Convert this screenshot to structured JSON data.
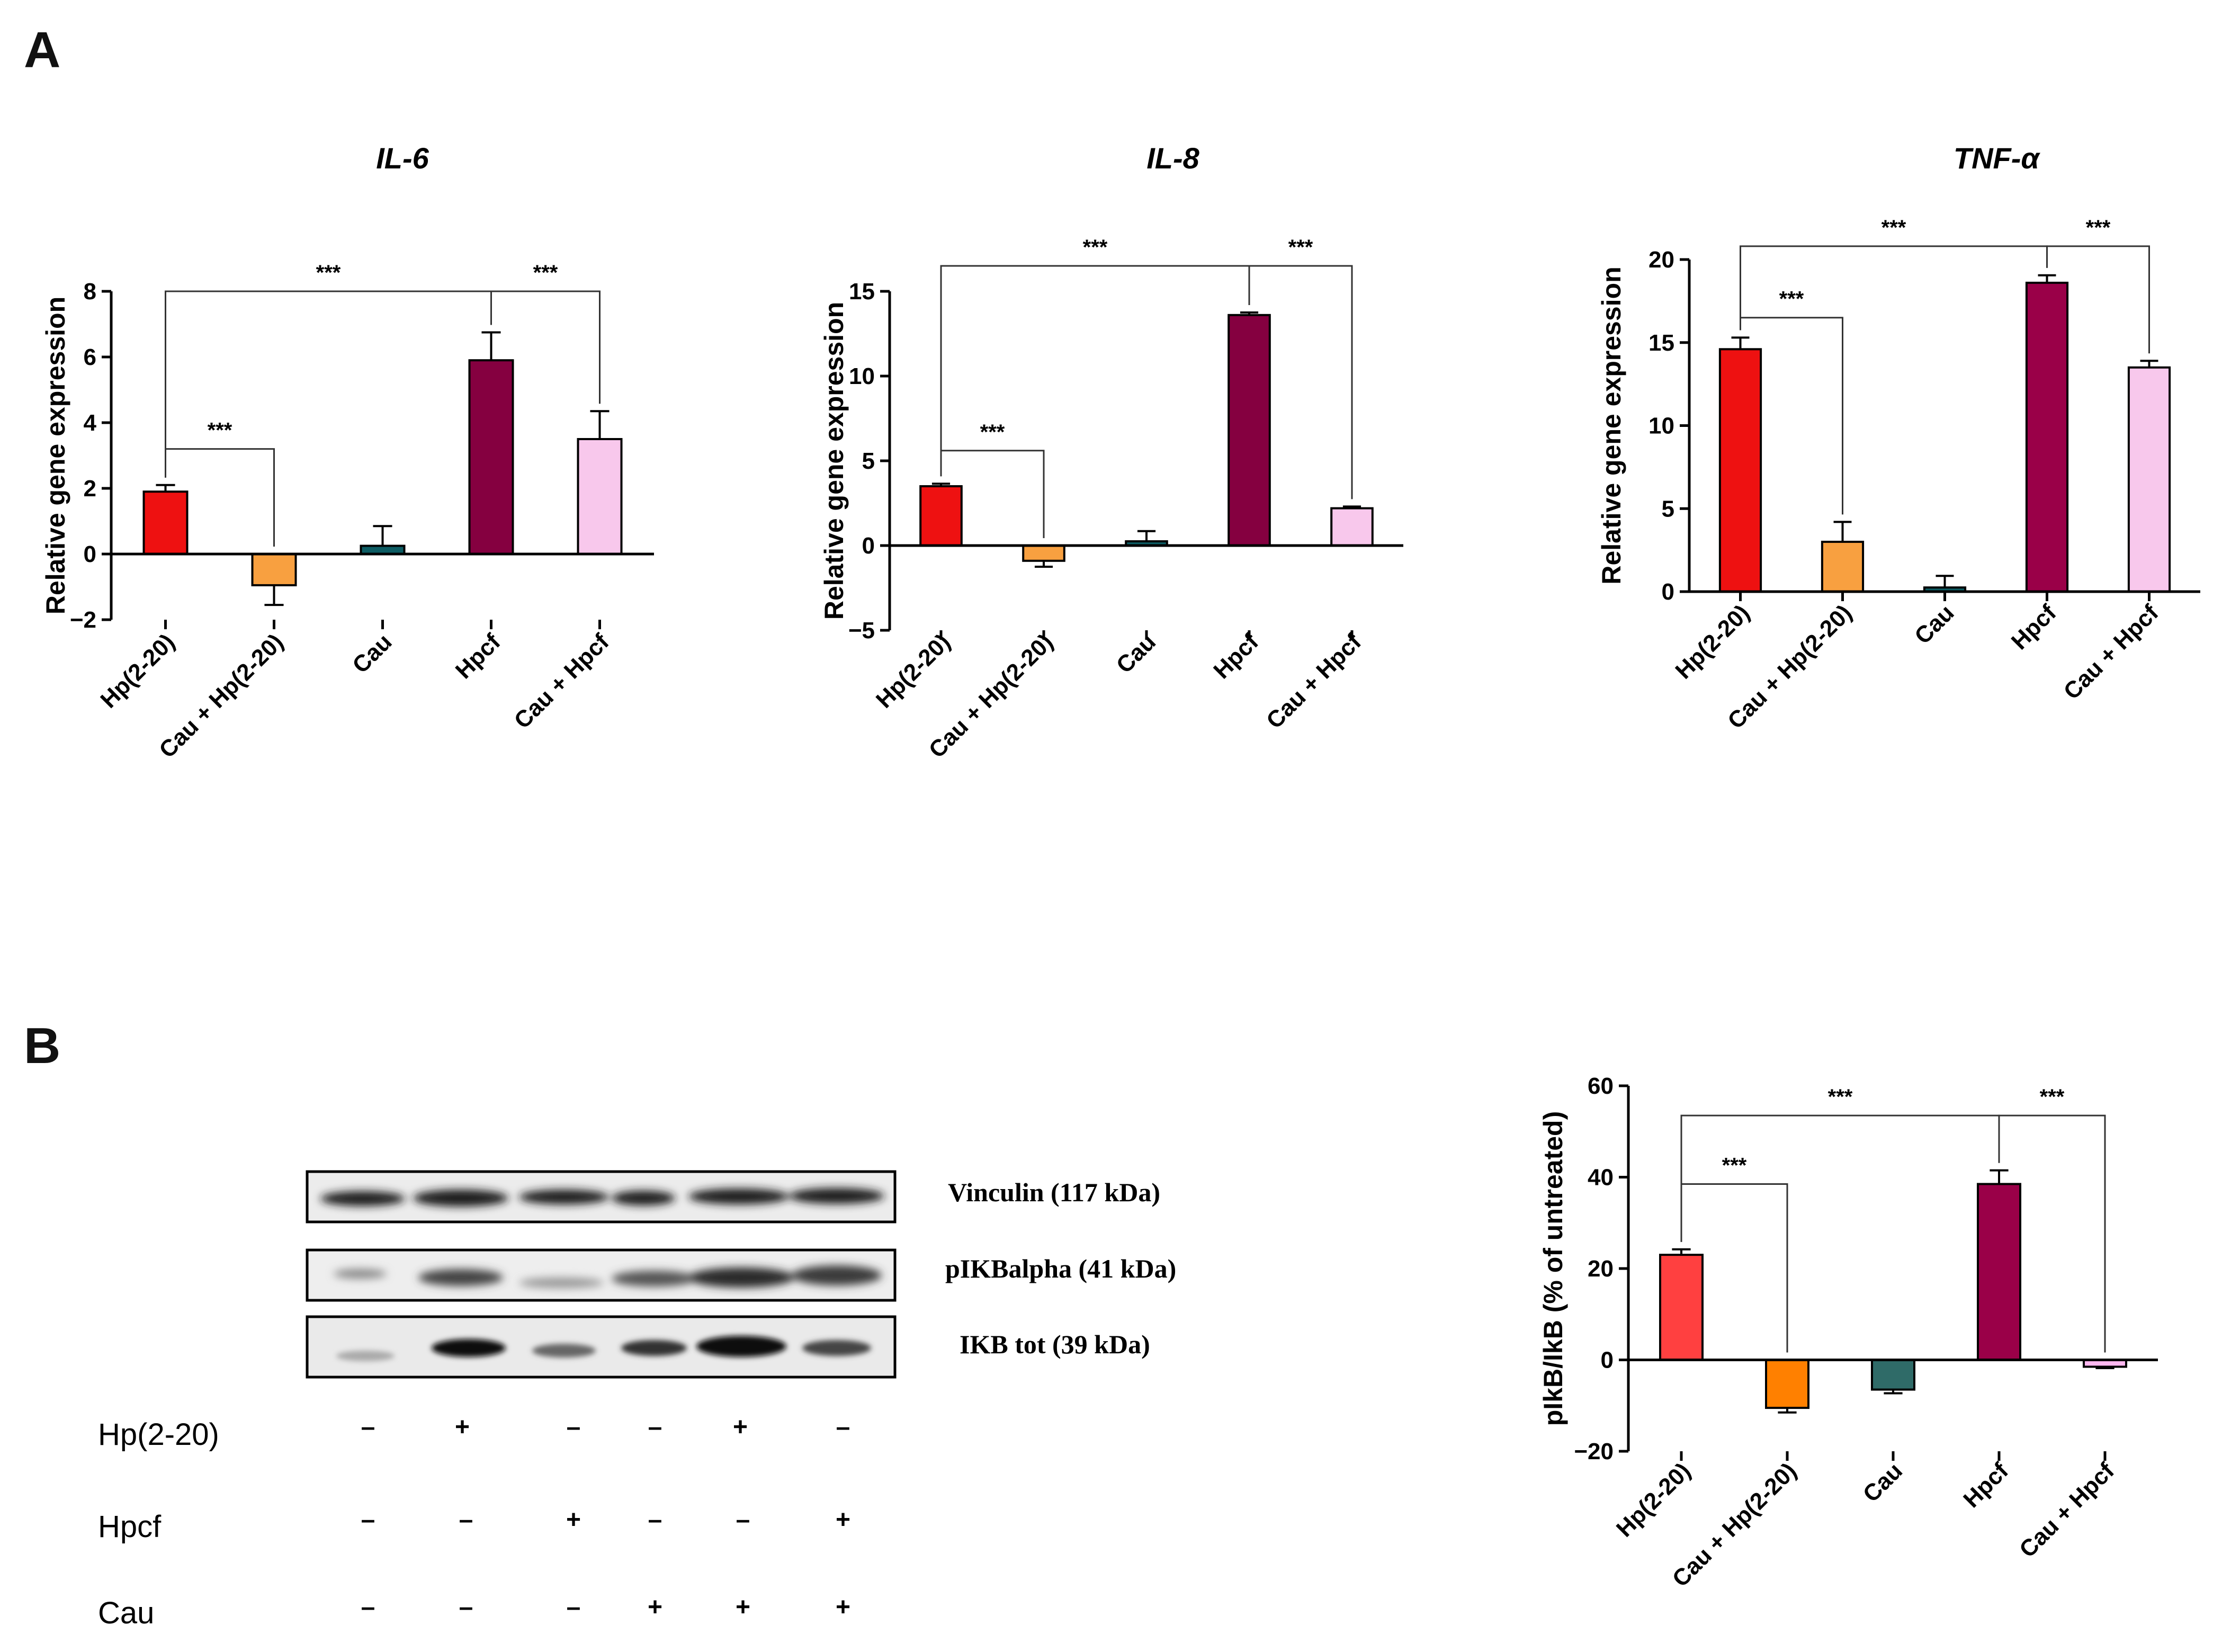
{
  "panels": {
    "a": "A",
    "b": "B"
  },
  "chart_data": [
    {
      "id": "il6",
      "type": "bar",
      "title": "IL-6",
      "ylabel": "Relative gene expression",
      "categories": [
        "Hp(2-20)",
        "Cau + Hp(2-20)",
        "Cau",
        "Hpcf",
        "Cau + Hpcf"
      ],
      "values": [
        1.9,
        -0.95,
        0.25,
        5.9,
        3.5
      ],
      "errors": [
        0.2,
        0.6,
        0.6,
        0.85,
        0.85
      ],
      "colors": [
        "#ee1111",
        "#f8a040",
        "#0d5c63",
        "#850040",
        "#f8c8ec"
      ],
      "ylim": [
        -2,
        8
      ],
      "yticks": [
        -2,
        0,
        2,
        4,
        6,
        8
      ],
      "significance": [
        {
          "from": 0,
          "to": 1,
          "label": "***",
          "level": 3.2
        },
        {
          "from": 0,
          "to": 3,
          "label": "***",
          "level": 8.0
        },
        {
          "from": 3,
          "to": 4,
          "label": "***",
          "level": 8.0
        }
      ]
    },
    {
      "id": "il8",
      "type": "bar",
      "title": "IL-8",
      "ylabel": "Relative gene expression",
      "categories": [
        "Hp(2-20)",
        "Cau + Hp(2-20)",
        "Cau",
        "Hpcf",
        "Cau + Hpcf"
      ],
      "values": [
        3.5,
        -0.9,
        0.25,
        13.6,
        2.2
      ],
      "errors": [
        0.15,
        0.35,
        0.6,
        0.15,
        0.1
      ],
      "colors": [
        "#ee1111",
        "#f8a040",
        "#0d5c63",
        "#850040",
        "#f8c8ec"
      ],
      "ylim": [
        -5,
        15
      ],
      "yticks": [
        -5,
        0,
        5,
        10,
        15
      ],
      "significance": [
        {
          "from": 0,
          "to": 1,
          "label": "***",
          "level": 5.6
        },
        {
          "from": 0,
          "to": 3,
          "label": "***",
          "level": 16.5
        },
        {
          "from": 3,
          "to": 4,
          "label": "***",
          "level": 16.5
        }
      ]
    },
    {
      "id": "tnf",
      "type": "bar",
      "title": "TNF-α",
      "ylabel": "Relative gene expression",
      "categories": [
        "Hp(2-20)",
        "Cau + Hp(2-20)",
        "Cau",
        "Hpcf",
        "Cau + Hpcf"
      ],
      "values": [
        14.6,
        3.0,
        0.25,
        18.6,
        13.5
      ],
      "errors": [
        0.7,
        1.2,
        0.7,
        0.45,
        0.4
      ],
      "colors": [
        "#ee1111",
        "#f8a040",
        "#0d5c63",
        "#9a0048",
        "#f8c8ec"
      ],
      "ylim": [
        0,
        20
      ],
      "yticks": [
        0,
        5,
        10,
        15,
        20
      ],
      "significance": [
        {
          "from": 0,
          "to": 1,
          "label": "***",
          "level": 16.5
        },
        {
          "from": 0,
          "to": 3,
          "label": "***",
          "level": 20.8
        },
        {
          "from": 3,
          "to": 4,
          "label": "***",
          "level": 20.8
        }
      ]
    },
    {
      "id": "pikb",
      "type": "bar",
      "title": "",
      "ylabel": "pIkB/IkB (% of untreated)",
      "categories": [
        "Hp(2-20)",
        "Cau + Hp(2-20)",
        "Cau",
        "Hpcf",
        "Cau + Hpcf"
      ],
      "values": [
        23,
        -10.5,
        -6.5,
        38.5,
        -1.5
      ],
      "errors": [
        1.2,
        1.0,
        0.8,
        3.0,
        0.3
      ],
      "colors": [
        "#ff4040",
        "#ff8000",
        "#2f6b68",
        "#9a0048",
        "#ffb8f0"
      ],
      "ylim": [
        -20,
        60
      ],
      "yticks": [
        -20,
        0,
        20,
        40,
        60
      ],
      "significance": [
        {
          "from": 0,
          "to": 1,
          "label": "***",
          "level": 38.5
        },
        {
          "from": 0,
          "to": 3,
          "label": "***",
          "level": 53.5
        },
        {
          "from": 3,
          "to": 4,
          "label": "***",
          "level": 53.5
        }
      ]
    }
  ],
  "blot": {
    "bands": [
      "Vinculin (117 kDa)",
      "pIKBalpha (41 kDa)",
      "IKB tot (39 kDa)"
    ],
    "treatments": [
      {
        "name": "Hp(2-20)",
        "signs": [
          "–",
          "+",
          "–",
          "–",
          "+",
          "–"
        ]
      },
      {
        "name": "Hpcf",
        "signs": [
          "–",
          "–",
          "+",
          "–",
          "–",
          "+"
        ]
      },
      {
        "name": "Cau",
        "signs": [
          "–",
          "–",
          "–",
          "+",
          "+",
          "+"
        ]
      }
    ]
  }
}
